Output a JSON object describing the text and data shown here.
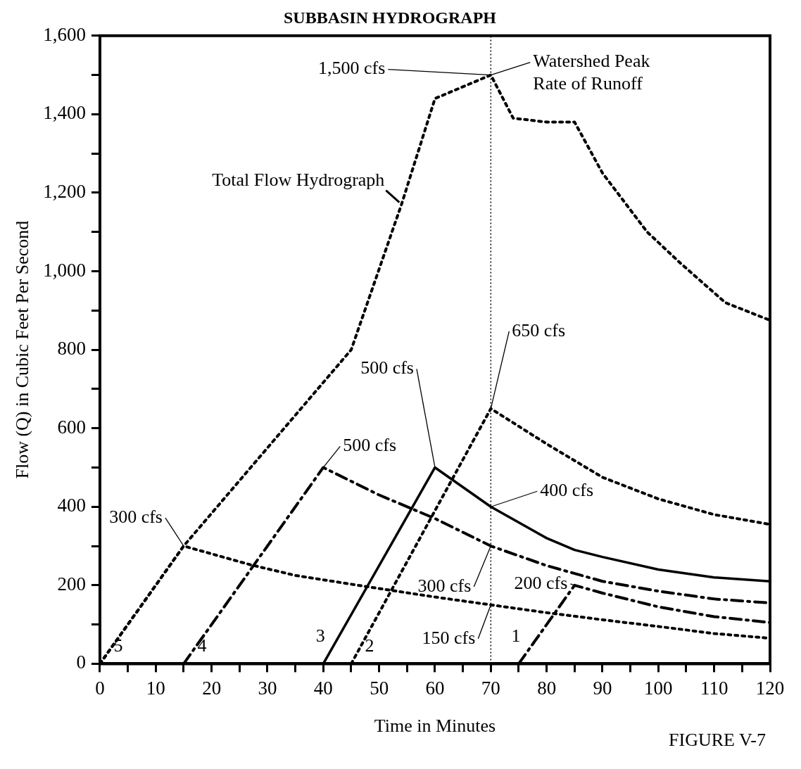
{
  "chart_data": {
    "type": "line",
    "title": "SUBBASIN HYDROGRAPH",
    "xlabel": "Time in Minutes",
    "ylabel": "Flow (Q) in Cubic Feet Per Second",
    "series": [
      {
        "name": "Total Flow Hydrograph",
        "color": "#000000",
        "line_style": "dotted",
        "x": [
          0,
          15,
          45,
          54,
          60,
          70,
          74,
          80,
          85,
          90,
          98,
          104,
          112,
          120
        ],
        "values": [
          0,
          300,
          800,
          1170,
          1440,
          1500,
          1390,
          1380,
          1380,
          1250,
          1100,
          1020,
          920,
          875
        ]
      },
      {
        "name": "5",
        "color": "#000000",
        "line_style": "dotted",
        "x": [
          0,
          15,
          20,
          27,
          35,
          48,
          60,
          70,
          80,
          90,
          100,
          110,
          120
        ],
        "values": [
          0,
          300,
          280,
          252,
          225,
          196,
          170,
          150,
          130,
          112,
          95,
          77,
          65
        ]
      },
      {
        "name": "4",
        "color": "#000000",
        "line_style": "dashed",
        "x": [
          15,
          40,
          50,
          60,
          70,
          80,
          90,
          100,
          110,
          120
        ],
        "values": [
          0,
          500,
          430,
          370,
          300,
          250,
          210,
          185,
          165,
          155
        ]
      },
      {
        "name": "3",
        "color": "#000000",
        "line_style": "solid",
        "x": [
          40,
          60,
          70,
          80,
          85,
          90,
          100,
          110,
          120
        ],
        "values": [
          0,
          500,
          400,
          320,
          290,
          272,
          240,
          220,
          210
        ]
      },
      {
        "name": "2",
        "color": "#000000",
        "line_style": "dotted",
        "x": [
          45,
          70,
          80,
          90,
          100,
          110,
          120
        ],
        "values": [
          0,
          650,
          560,
          475,
          420,
          380,
          355
        ]
      },
      {
        "name": "1",
        "color": "#000000",
        "line_style": "dashed",
        "x": [
          75,
          85,
          90,
          100,
          110,
          120
        ],
        "values": [
          0,
          200,
          180,
          145,
          120,
          105
        ]
      }
    ],
    "xlim": [
      0,
      120
    ],
    "xticks": [
      0,
      {
        "value": 5,
        "label": null
      },
      10,
      {
        "value": 15,
        "label": null
      },
      20,
      {
        "value": 25,
        "label": null
      },
      30,
      {
        "value": 35,
        "label": null
      },
      40,
      {
        "value": 45,
        "label": null
      },
      50,
      {
        "value": 55,
        "label": null
      },
      60,
      {
        "value": 65,
        "label": null
      },
      70,
      {
        "value": 75,
        "label": null
      },
      80,
      {
        "value": 85,
        "label": null
      },
      90,
      {
        "value": 95,
        "label": null
      },
      100,
      {
        "value": 105,
        "label": null
      },
      110,
      {
        "value": 115,
        "label": null
      },
      120
    ],
    "ylim": [
      0,
      1600
    ],
    "yticks": [
      0,
      {
        "value": 100,
        "label": null
      },
      200,
      {
        "value": 300,
        "label": null
      },
      400,
      {
        "value": 500,
        "label": null
      },
      600,
      {
        "value": 700,
        "label": null
      },
      800,
      {
        "value": 900,
        "label": null
      },
      {
        "value": 1000,
        "label": "1,000"
      },
      {
        "value": 1100,
        "label": null
      },
      {
        "value": 1200,
        "label": "1,200"
      },
      {
        "value": 1300,
        "label": null
      },
      {
        "value": 1400,
        "label": "1,400"
      },
      {
        "value": 1500,
        "label": null
      },
      {
        "value": 1600,
        "label": "1,600"
      }
    ],
    "grid": false,
    "marker": "none",
    "ref_lines": [
      {
        "axis": "x",
        "value": 70,
        "line_style": "dotted"
      }
    ],
    "annotations": [
      {
        "text": "1,500 cfs",
        "x": 70,
        "y": 1500
      },
      {
        "text": "Watershed Peak Rate of Runoff",
        "x": 70,
        "y": 1500
      },
      {
        "text": "650 cfs",
        "x": 70,
        "y": 650
      },
      {
        "text": "500 cfs",
        "x": 60,
        "y": 500
      },
      {
        "text": "500 cfs",
        "x": 40,
        "y": 500
      },
      {
        "text": "300 cfs",
        "x": 15,
        "y": 300
      },
      {
        "text": "400 cfs",
        "x": 70,
        "y": 400
      },
      {
        "text": "300 cfs",
        "x": 70,
        "y": 300
      },
      {
        "text": "200 cfs",
        "x": 85,
        "y": 200
      },
      {
        "text": "150 cfs",
        "x": 70,
        "y": 150
      },
      "FIGURE V-7"
    ]
  }
}
